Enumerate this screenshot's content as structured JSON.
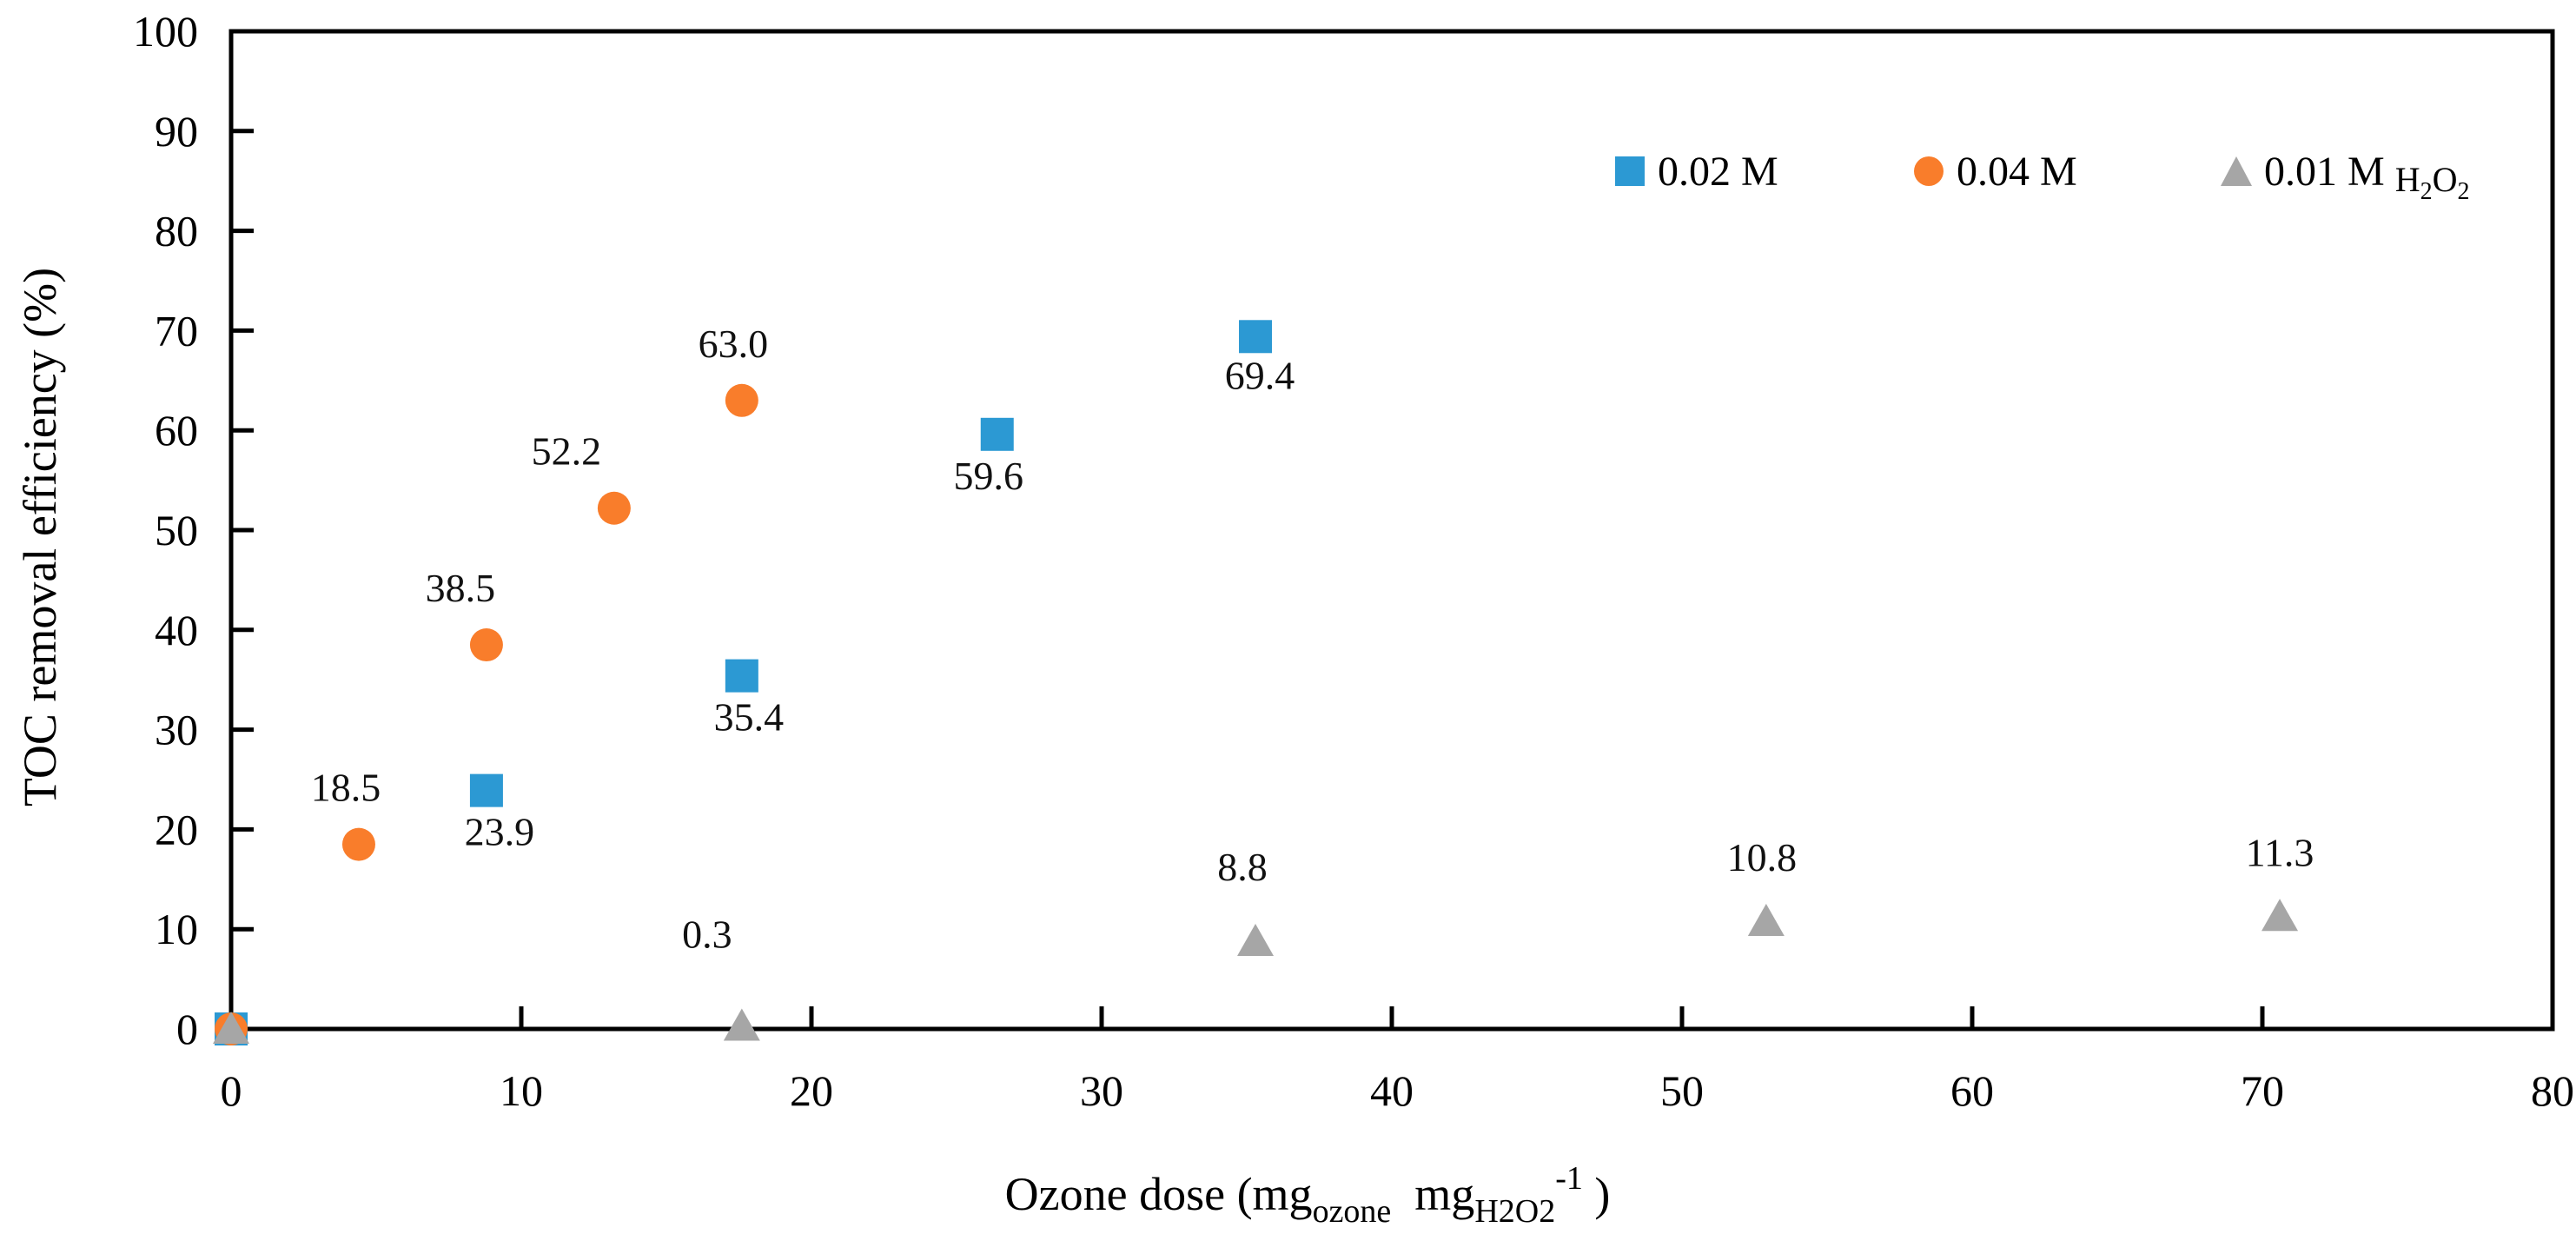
{
  "chart_data": {
    "type": "scatter",
    "title": "",
    "ylabel": "TOC removal efficiency (%)",
    "xlabel_plain": "Ozone dose (mg_ozone mg_H2O2^-1 )",
    "xlabel_parts": [
      {
        "text": "Ozone dose (mg",
        "style": "normal"
      },
      {
        "text": "ozone",
        "style": "sub"
      },
      {
        "text": "  mg",
        "style": "normal"
      },
      {
        "text": "H2O2",
        "style": "sub"
      },
      {
        "text": "-1",
        "style": "sup"
      },
      {
        "text": " )",
        "style": "normal"
      }
    ],
    "xlim": [
      0,
      80
    ],
    "ylim": [
      0,
      100
    ],
    "x_ticks": [
      "0",
      "10",
      "20",
      "30",
      "40",
      "50",
      "60",
      "70",
      "80"
    ],
    "y_ticks": [
      "0",
      "10",
      "20",
      "30",
      "40",
      "50",
      "60",
      "70",
      "80",
      "90",
      "100"
    ],
    "grid": false,
    "legend_position": "top-right-inside",
    "axis_color": "#000000",
    "series": [
      {
        "name": "0.02 M",
        "marker": "square",
        "color": "#2C99D3",
        "points": [
          {
            "x": 0,
            "y": 0
          },
          {
            "x": 8.8,
            "y": 23.9,
            "label": "23.9",
            "dx": 15,
            "dy": 63
          },
          {
            "x": 17.6,
            "y": 35.4,
            "label": "35.4",
            "dx": 8,
            "dy": 63
          },
          {
            "x": 26.4,
            "y": 59.6,
            "label": "59.6",
            "dx": -10,
            "dy": 63
          },
          {
            "x": 35.3,
            "y": 69.4,
            "label": "69.4",
            "dx": 5,
            "dy": 60
          }
        ]
      },
      {
        "name": "0.04 M",
        "marker": "circle",
        "color": "#F97D2B",
        "points": [
          {
            "x": 0,
            "y": 0
          },
          {
            "x": 4.4,
            "y": 18.5,
            "label": "18.5",
            "dx": -15,
            "dy": -50
          },
          {
            "x": 8.8,
            "y": 38.5,
            "label": "38.5",
            "dx": -30,
            "dy": -50
          },
          {
            "x": 13.2,
            "y": 52.2,
            "label": "52.2",
            "dx": -55,
            "dy": -50
          },
          {
            "x": 17.6,
            "y": 63.0,
            "label": "63.0",
            "dx": -10,
            "dy": -50
          }
        ]
      },
      {
        "name": "0.01 M H2O2",
        "marker": "triangle",
        "color": "#A6A6A6",
        "points": [
          {
            "x": 0,
            "y": 0
          },
          {
            "x": 17.6,
            "y": 0.3,
            "label": "0.3",
            "dx": -40,
            "dy": -90
          },
          {
            "x": 35.3,
            "y": 8.8,
            "label": "8.8",
            "dx": -15,
            "dy": -70
          },
          {
            "x": 52.9,
            "y": 10.8,
            "label": "10.8",
            "dx": -5,
            "dy": -58
          },
          {
            "x": 70.6,
            "y": 11.3,
            "label": "11.3",
            "dx": 0,
            "dy": -58
          }
        ]
      }
    ],
    "legend": [
      {
        "label": "0.02 M",
        "marker": "square",
        "color": "#2C99D3",
        "x": 1856
      },
      {
        "label": "0.04 M",
        "marker": "circle",
        "color": "#F97D2B",
        "x": 2200
      },
      {
        "label": "0.01 M",
        "marker": "triangle",
        "color": "#A6A6A6",
        "x": 2554,
        "suffix_parts": [
          {
            "text": "H",
            "style": "normal"
          },
          {
            "text": "2",
            "style": "sub"
          },
          {
            "text": "O",
            "style": "normal"
          },
          {
            "text": "2",
            "style": "sub"
          }
        ]
      }
    ]
  }
}
